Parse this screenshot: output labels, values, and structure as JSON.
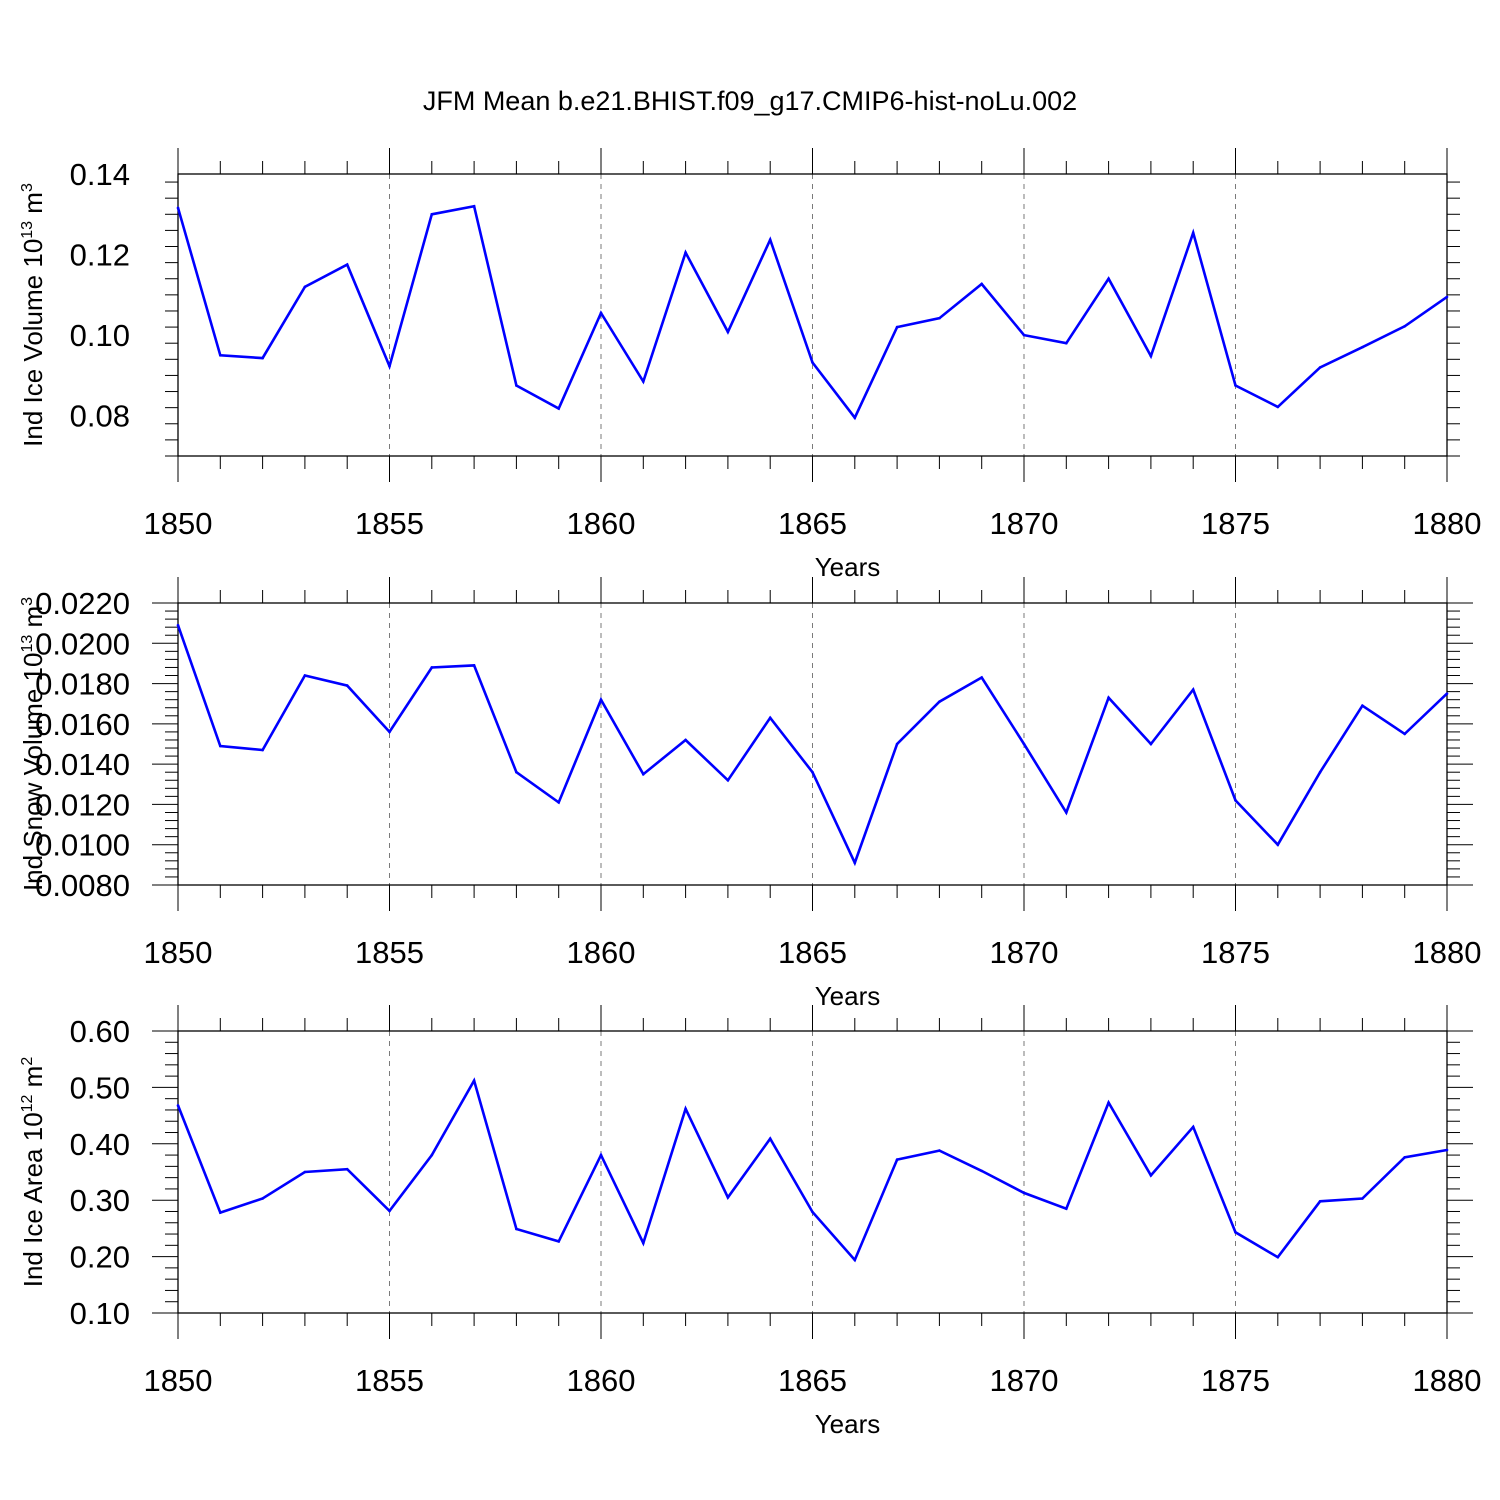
{
  "title": "JFM Mean b.e21.BHIST.f09_g17.CMIP6-hist-noLu.002",
  "colors": {
    "line": "#0000ff",
    "axis": "#000000",
    "grid": "#7a7a7a"
  },
  "chart_data": [
    {
      "type": "line",
      "ylabel": "Ind Ice Volume 10",
      "ylabel_exp": "13",
      "ylabel_unit": " m",
      "ylabel_unit_exp": "3",
      "xlabel": "Years",
      "xlim": [
        1850,
        1880
      ],
      "ylim": [
        0.07,
        0.14
      ],
      "yticks": [
        0.08,
        0.1,
        0.12,
        0.14
      ],
      "ytick_labels": [
        "0.08",
        "0.10",
        "0.12",
        "0.14"
      ],
      "xticks": [
        1850,
        1855,
        1860,
        1865,
        1870,
        1875,
        1880
      ],
      "xtick_labels": [
        "1850",
        "1855",
        "1860",
        "1865",
        "1870",
        "1875",
        "1880"
      ],
      "series": [
        {
          "name": "Ind Ice Volume",
          "x": [
            1850,
            1851,
            1852,
            1853,
            1854,
            1855,
            1856,
            1857,
            1858,
            1859,
            1860,
            1861,
            1862,
            1863,
            1864,
            1865,
            1866,
            1867,
            1868,
            1869,
            1870,
            1871,
            1872,
            1873,
            1874,
            1875,
            1876,
            1877,
            1878,
            1879,
            1880
          ],
          "values": [
            0.1316,
            0.095,
            0.0943,
            0.112,
            0.1175,
            0.0923,
            0.13,
            0.132,
            0.0875,
            0.0818,
            0.1055,
            0.0885,
            0.1205,
            0.1008,
            0.1237,
            0.0932,
            0.0795,
            0.102,
            0.1042,
            0.1127,
            0.1,
            0.098,
            0.114,
            0.0948,
            0.1254,
            0.0875,
            0.0822,
            0.092,
            0.097,
            0.1022,
            0.1095
          ]
        }
      ]
    },
    {
      "type": "line",
      "ylabel": "Ind Snow Volume 10",
      "ylabel_exp": "13",
      "ylabel_unit": " m",
      "ylabel_unit_exp": "3",
      "xlabel": "Years",
      "xlim": [
        1850,
        1880
      ],
      "ylim": [
        0.008,
        0.022
      ],
      "yticks": [
        0.008,
        0.01,
        0.012,
        0.014,
        0.016,
        0.018,
        0.02,
        0.022
      ],
      "ytick_labels": [
        "0.0080",
        "0.0100",
        "0.0120",
        "0.0140",
        "0.0160",
        "0.0180",
        "0.0200",
        "0.0220"
      ],
      "xticks": [
        1850,
        1855,
        1860,
        1865,
        1870,
        1875,
        1880
      ],
      "xtick_labels": [
        "1850",
        "1855",
        "1860",
        "1865",
        "1870",
        "1875",
        "1880"
      ],
      "series": [
        {
          "name": "Ind Snow Volume",
          "x": [
            1850,
            1851,
            1852,
            1853,
            1854,
            1855,
            1856,
            1857,
            1858,
            1859,
            1860,
            1861,
            1862,
            1863,
            1864,
            1865,
            1866,
            1867,
            1868,
            1869,
            1870,
            1871,
            1872,
            1873,
            1874,
            1875,
            1876,
            1877,
            1878,
            1879,
            1880
          ],
          "values": [
            0.0209,
            0.0149,
            0.0147,
            0.0184,
            0.0179,
            0.0156,
            0.0188,
            0.0189,
            0.0136,
            0.0121,
            0.0172,
            0.0135,
            0.0152,
            0.0132,
            0.0163,
            0.0136,
            0.0091,
            0.015,
            0.0171,
            0.0183,
            0.015,
            0.0116,
            0.0173,
            0.015,
            0.0177,
            0.0122,
            0.01,
            0.0136,
            0.0169,
            0.0155,
            0.0175
          ]
        }
      ]
    },
    {
      "type": "line",
      "ylabel": "Ind Ice Area 10",
      "ylabel_exp": "12",
      "ylabel_unit": " m",
      "ylabel_unit_exp": "2",
      "xlabel": "Years",
      "xlim": [
        1850,
        1880
      ],
      "ylim": [
        0.1,
        0.6
      ],
      "yticks": [
        0.1,
        0.2,
        0.3,
        0.4,
        0.5,
        0.6
      ],
      "ytick_labels": [
        "0.10",
        "0.20",
        "0.30",
        "0.40",
        "0.50",
        "0.60"
      ],
      "xticks": [
        1850,
        1855,
        1860,
        1865,
        1870,
        1875,
        1880
      ],
      "xtick_labels": [
        "1850",
        "1855",
        "1860",
        "1865",
        "1870",
        "1875",
        "1880"
      ],
      "series": [
        {
          "name": "Ind Ice Area",
          "x": [
            1850,
            1851,
            1852,
            1853,
            1854,
            1855,
            1856,
            1857,
            1858,
            1859,
            1860,
            1861,
            1862,
            1863,
            1864,
            1865,
            1866,
            1867,
            1868,
            1869,
            1870,
            1871,
            1872,
            1873,
            1874,
            1875,
            1876,
            1877,
            1878,
            1879,
            1880
          ],
          "values": [
            0.468,
            0.278,
            0.303,
            0.35,
            0.355,
            0.281,
            0.38,
            0.512,
            0.249,
            0.227,
            0.38,
            0.224,
            0.462,
            0.305,
            0.409,
            0.279,
            0.194,
            0.372,
            0.388,
            0.352,
            0.313,
            0.285,
            0.473,
            0.344,
            0.43,
            0.243,
            0.199,
            0.298,
            0.303,
            0.376,
            0.389
          ]
        }
      ]
    }
  ]
}
